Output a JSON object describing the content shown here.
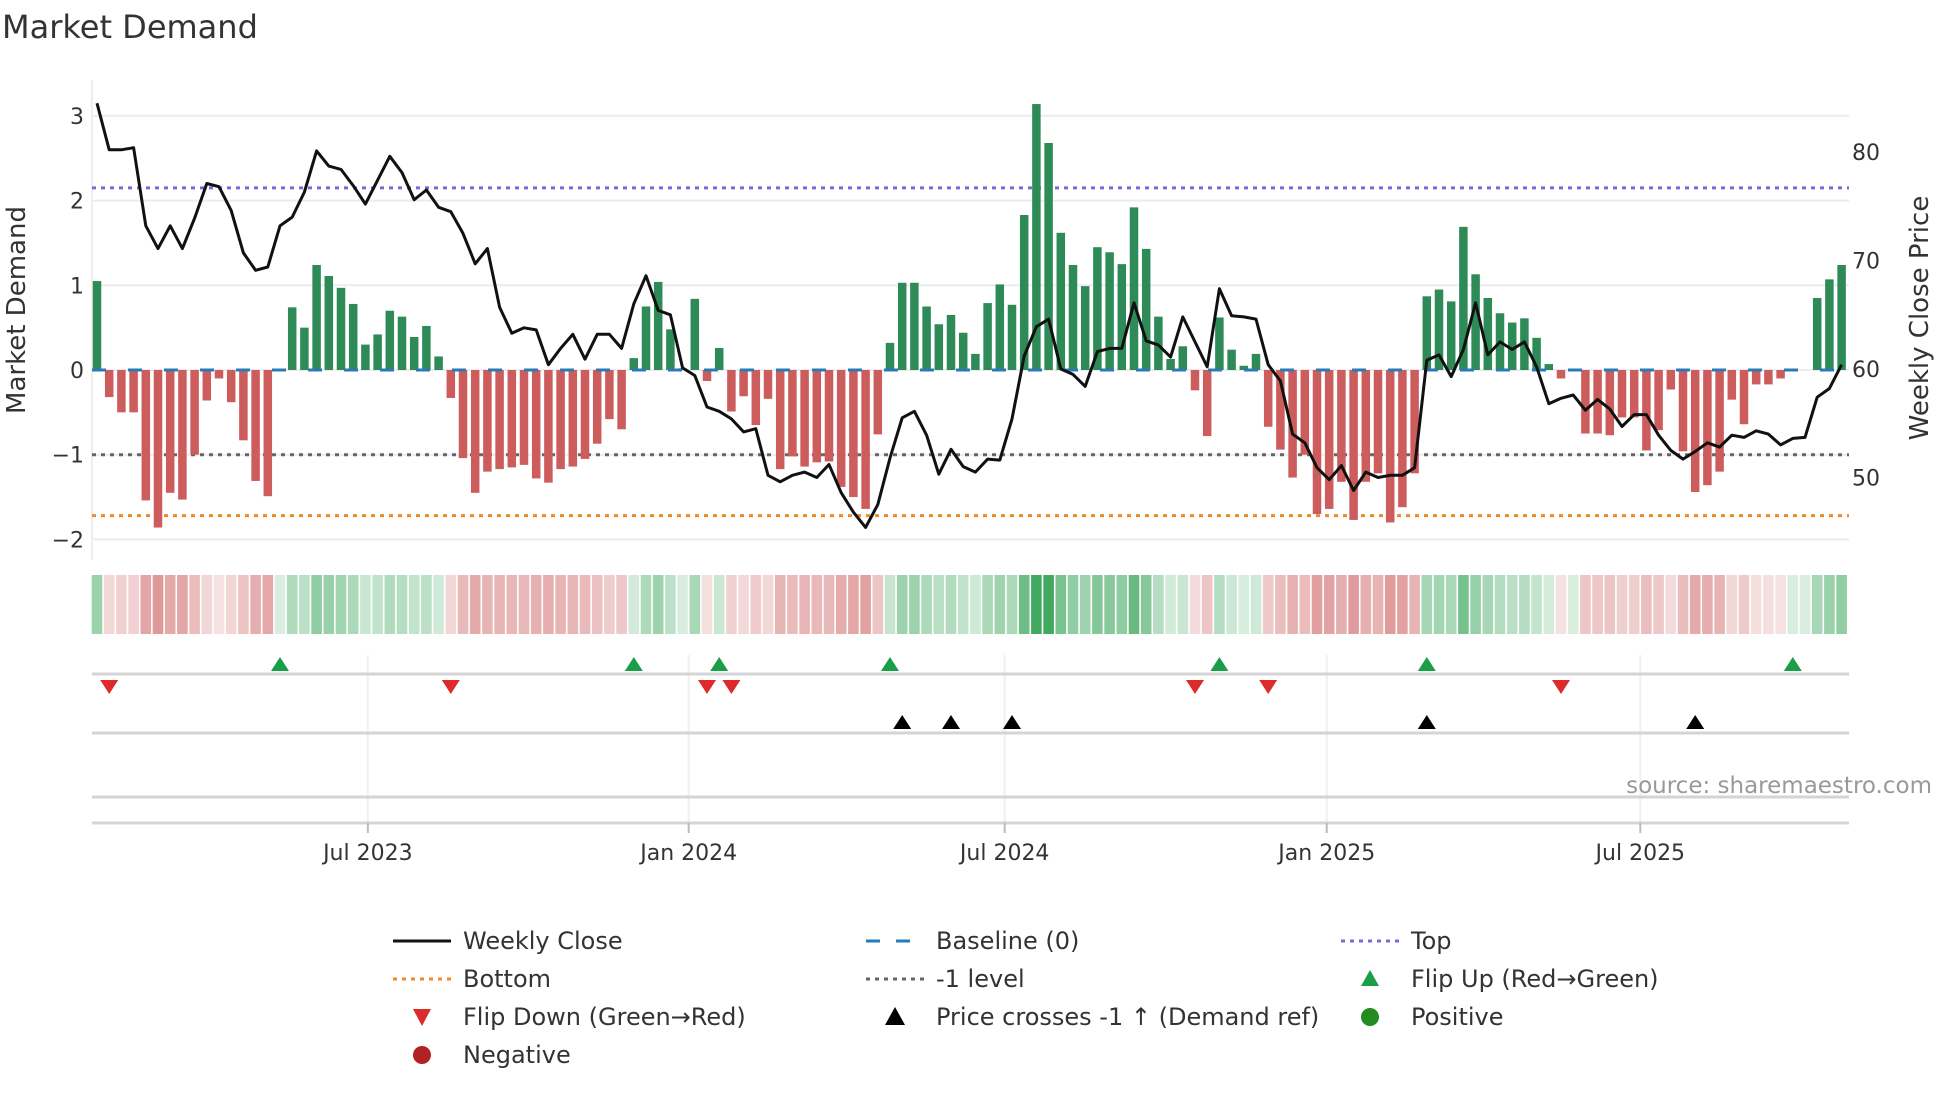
{
  "chart_data": {
    "type": "bar",
    "title": "Market Demand",
    "ylabel": "Market Demand",
    "y2label": "Weekly Close Price",
    "ylim": [
      -2.25,
      3.3
    ],
    "y2lim": [
      44,
      84.5
    ],
    "yticks": [
      -2,
      -1,
      0,
      1,
      2,
      3
    ],
    "ytick_labels": [
      "−2",
      "−1",
      "0",
      "1",
      "2",
      "3"
    ],
    "y2ticks": [
      50,
      60,
      70,
      80
    ],
    "y2tick_labels": [
      "50",
      "60",
      "70",
      "80"
    ],
    "xticks": [
      {
        "week": 23.2,
        "label": "Jul 2023"
      },
      {
        "week": 49.5,
        "label": "Jan 2024"
      },
      {
        "week": 75.4,
        "label": "Jul 2024"
      },
      {
        "week": 101.8,
        "label": "Jan 2025"
      },
      {
        "week": 127.5,
        "label": "Jul 2025"
      }
    ],
    "grid": true,
    "levels": {
      "top": 2.15,
      "bottom": -1.72,
      "minus_one": -1,
      "baseline": 0
    },
    "demand": [
      1.05,
      -0.32,
      -0.5,
      -0.5,
      -1.54,
      -1.86,
      -1.45,
      -1.53,
      -1.0,
      -0.36,
      -0.1,
      -0.38,
      -0.83,
      -1.31,
      -1.49,
      0,
      0.74,
      0.5,
      1.24,
      1.11,
      0.97,
      0.78,
      0.3,
      0.42,
      0.7,
      0.63,
      0.39,
      0.52,
      0.16,
      -0.33,
      -1.04,
      -1.45,
      -1.2,
      -1.17,
      -1.15,
      -1.12,
      -1.28,
      -1.33,
      -1.17,
      -1.14,
      -1.05,
      -0.87,
      -0.58,
      -0.7,
      0.14,
      0.75,
      1.04,
      0.48,
      0.02,
      0.84,
      -0.13,
      0.26,
      -0.49,
      -0.31,
      -0.65,
      -0.34,
      -1.17,
      -1.02,
      -1.14,
      -1.09,
      -1.08,
      -1.38,
      -1.5,
      -1.64,
      -0.76,
      0.32,
      1.03,
      1.03,
      0.75,
      0.54,
      0.65,
      0.44,
      0.19,
      0.79,
      1.01,
      0.77,
      1.83,
      3.14,
      2.68,
      1.62,
      1.24,
      0.99,
      1.45,
      1.39,
      1.25,
      1.92,
      1.43,
      0.63,
      0.13,
      0.28,
      -0.24,
      -0.78,
      0.62,
      0.24,
      0.05,
      0.19,
      -0.67,
      -0.94,
      -1.27,
      -1.0,
      -1.7,
      -1.64,
      -1.32,
      -1.77,
      -1.32,
      -1.22,
      -1.8,
      -1.62,
      -1.22,
      0.87,
      0.95,
      0.81,
      1.69,
      1.13,
      0.85,
      0.67,
      0.56,
      0.61,
      0.38,
      0.07,
      -0.1,
      0,
      -0.75,
      -0.75,
      -0.77,
      -0.56,
      -0.56,
      -0.95,
      -0.71,
      -0.23,
      -0.96,
      -1.44,
      -1.36,
      -1.2,
      -0.35,
      -0.64,
      -0.17,
      -0.17,
      -0.1,
      0,
      0,
      0.85,
      1.07,
      1.24
    ],
    "weekly_close": [
      84.5,
      80.2,
      80.2,
      80.4,
      73.2,
      71.1,
      73.2,
      71.1,
      73.9,
      77.1,
      76.8,
      74.6,
      70.7,
      69.1,
      69.4,
      73.2,
      74.0,
      76.3,
      80.1,
      78.7,
      78.4,
      76.9,
      75.2,
      77.4,
      79.6,
      78.1,
      75.6,
      76.5,
      74.9,
      74.5,
      72.5,
      69.7,
      71.1,
      65.7,
      63.3,
      63.8,
      63.6,
      60.4,
      61.9,
      63.2,
      60.9,
      63.2,
      63.2,
      61.9,
      66.0,
      68.6,
      65.4,
      65.0,
      60.1,
      59.4,
      56.5,
      56.1,
      55.4,
      54.2,
      54.5,
      50.2,
      49.6,
      50.2,
      50.5,
      50.0,
      51.2,
      48.6,
      46.8,
      45.4,
      47.5,
      51.8,
      55.5,
      56.1,
      53.9,
      50.3,
      52.6,
      51.0,
      50.5,
      51.7,
      51.6,
      55.4,
      61.2,
      63.9,
      64.6,
      60.0,
      59.5,
      58.4,
      61.6,
      61.9,
      61.9,
      66.1,
      62.6,
      62.2,
      61.1,
      64.8,
      62.5,
      60.2,
      67.4,
      64.9,
      64.8,
      64.6,
      60.4,
      58.9,
      54.0,
      53.2,
      50.9,
      49.8,
      51.1,
      48.8,
      50.5,
      50.0,
      50.2,
      50.2,
      50.9,
      60.8,
      61.3,
      59.3,
      61.8,
      66.1,
      61.3,
      62.5,
      61.8,
      62.5,
      60.2,
      56.8,
      57.3,
      57.6,
      56.2,
      57.2,
      56.3,
      54.7,
      55.8,
      55.8,
      53.9,
      52.5,
      51.7,
      52.4,
      53.2,
      52.8,
      53.9,
      53.7,
      54.3,
      54.0,
      53.0,
      53.6,
      53.7,
      57.4,
      58.2,
      60.4
    ],
    "flip_up_weeks": [
      16,
      45,
      52,
      66,
      93,
      110,
      140
    ],
    "flip_down_weeks": [
      2,
      30,
      51,
      53,
      91,
      97,
      121
    ],
    "price_cross_weeks": [
      67,
      71,
      76,
      110,
      132
    ],
    "colors": {
      "positive_bar": "#2e8b57",
      "negative_bar": "#cd5c5c",
      "price_line": "#111111",
      "top": "#7b68d9",
      "bottom": "#f0892a",
      "minus_one": "#666666",
      "baseline": "#2a7bb5",
      "flip_up": "#1a9e4a",
      "flip_down": "#dd2a2a",
      "price_cross": "#000000",
      "positive_dot": "#228b22",
      "negative_dot": "#b22222"
    },
    "legend": {
      "placement": "bottom",
      "items": [
        {
          "label": "Weekly Close",
          "kind": "line"
        },
        {
          "label": "Baseline (0)",
          "kind": "baseline"
        },
        {
          "label": "Top",
          "kind": "top"
        },
        {
          "label": "Bottom",
          "kind": "bottom"
        },
        {
          "label": "-1 level",
          "kind": "minus_one"
        },
        {
          "label": "Flip Up (Red→Green)",
          "kind": "flip_up"
        },
        {
          "label": "Flip Down (Green→Red)",
          "kind": "flip_down"
        },
        {
          "label": "Price crosses -1 ↑ (Demand ref)",
          "kind": "price_cross"
        },
        {
          "label": "Positive",
          "kind": "positive"
        },
        {
          "label": "Negative",
          "kind": "negative"
        }
      ]
    },
    "source": "source: sharemaestro.com"
  }
}
